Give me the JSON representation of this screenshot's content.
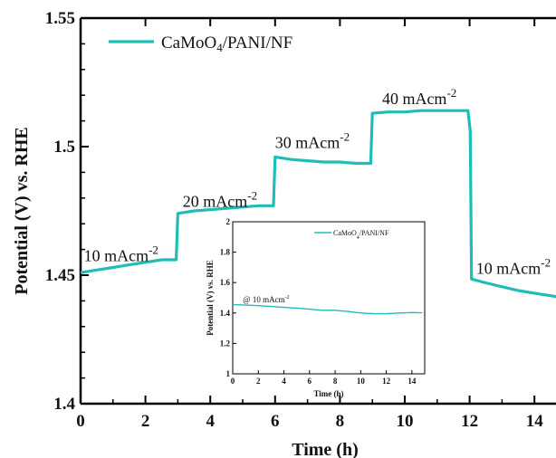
{
  "chart_data": [
    {
      "type": "line",
      "xlabel": "Time (h)",
      "ylabel": "Potential (V) vs. RHE",
      "xlim": [
        0,
        15
      ],
      "ylim": [
        1.4,
        1.55
      ],
      "x_ticks": [
        "0",
        "2",
        "4",
        "6",
        "8",
        "10",
        "12",
        "14"
      ],
      "y_ticks": [
        "1.4",
        "1.45",
        "1.5",
        "1.55"
      ],
      "grid": false,
      "legend_position": "top-left",
      "series": [
        {
          "name": "CaMoO4/PANI/NF",
          "color": "#1fbdb8",
          "points": [
            [
              0,
              1.451
            ],
            [
              0.5,
              1.452
            ],
            [
              1,
              1.453
            ],
            [
              1.5,
              1.454
            ],
            [
              2,
              1.455
            ],
            [
              2.5,
              1.456
            ],
            [
              2.95,
              1.456
            ],
            [
              3.0,
              1.474
            ],
            [
              3.5,
              1.475
            ],
            [
              4,
              1.4755
            ],
            [
              4.5,
              1.476
            ],
            [
              5,
              1.4765
            ],
            [
              5.5,
              1.477
            ],
            [
              5.95,
              1.477
            ],
            [
              6.0,
              1.496
            ],
            [
              6.5,
              1.495
            ],
            [
              7,
              1.4945
            ],
            [
              7.5,
              1.494
            ],
            [
              8,
              1.494
            ],
            [
              8.5,
              1.4935
            ],
            [
              8.95,
              1.4935
            ],
            [
              9.0,
              1.513
            ],
            [
              9.5,
              1.5135
            ],
            [
              10,
              1.5135
            ],
            [
              10.5,
              1.514
            ],
            [
              11,
              1.514
            ],
            [
              11.5,
              1.514
            ],
            [
              11.95,
              1.514
            ],
            [
              12.02,
              1.506
            ],
            [
              12.06,
              1.4485
            ],
            [
              12.5,
              1.447
            ],
            [
              13,
              1.4455
            ],
            [
              13.5,
              1.444
            ],
            [
              14,
              1.443
            ],
            [
              14.5,
              1.442
            ],
            [
              15,
              1.441
            ]
          ]
        }
      ],
      "annotations": [
        {
          "label": "10 mAcm",
          "sup": "-2",
          "x": 0.1,
          "y": 1.4555
        },
        {
          "label": "20 mAcm",
          "sup": "-2",
          "x": 3.15,
          "y": 1.4765
        },
        {
          "label": "30 mAcm",
          "sup": "-2",
          "x": 6.0,
          "y": 1.4995
        },
        {
          "label": "40 mAcm",
          "sup": "-2",
          "x": 9.3,
          "y": 1.5165
        },
        {
          "label": "10 mAcm",
          "sup": "-2",
          "x": 12.2,
          "y": 1.4505
        }
      ]
    },
    {
      "type": "line",
      "role": "inset",
      "xlabel": "Time (h)",
      "ylabel": "Potential (V) vs. RHE",
      "xlim": [
        0,
        15
      ],
      "ylim": [
        1,
        2
      ],
      "x_ticks": [
        "0",
        "2",
        "4",
        "6",
        "8",
        "10",
        "12",
        "14"
      ],
      "y_ticks": [
        "1",
        "1.2",
        "1.4",
        "1.6",
        "1.8",
        "2"
      ],
      "legend_position": "top-right",
      "series": [
        {
          "name": "CaMoO4/PANI/NF",
          "color": "#1fbdb8",
          "points": [
            [
              0,
              1.455
            ],
            [
              1,
              1.452
            ],
            [
              2,
              1.448
            ],
            [
              3,
              1.443
            ],
            [
              4,
              1.437
            ],
            [
              5,
              1.432
            ],
            [
              6,
              1.425
            ],
            [
              7,
              1.418
            ],
            [
              8,
              1.418
            ],
            [
              9,
              1.41
            ],
            [
              10,
              1.4
            ],
            [
              11,
              1.395
            ],
            [
              12,
              1.395
            ],
            [
              13,
              1.4
            ],
            [
              14,
              1.403
            ],
            [
              14.8,
              1.401
            ]
          ]
        }
      ],
      "annotations": [
        {
          "label": "@ 10 mAcm",
          "sup": "-2",
          "x": 0.8,
          "y": 1.47
        }
      ]
    }
  ]
}
